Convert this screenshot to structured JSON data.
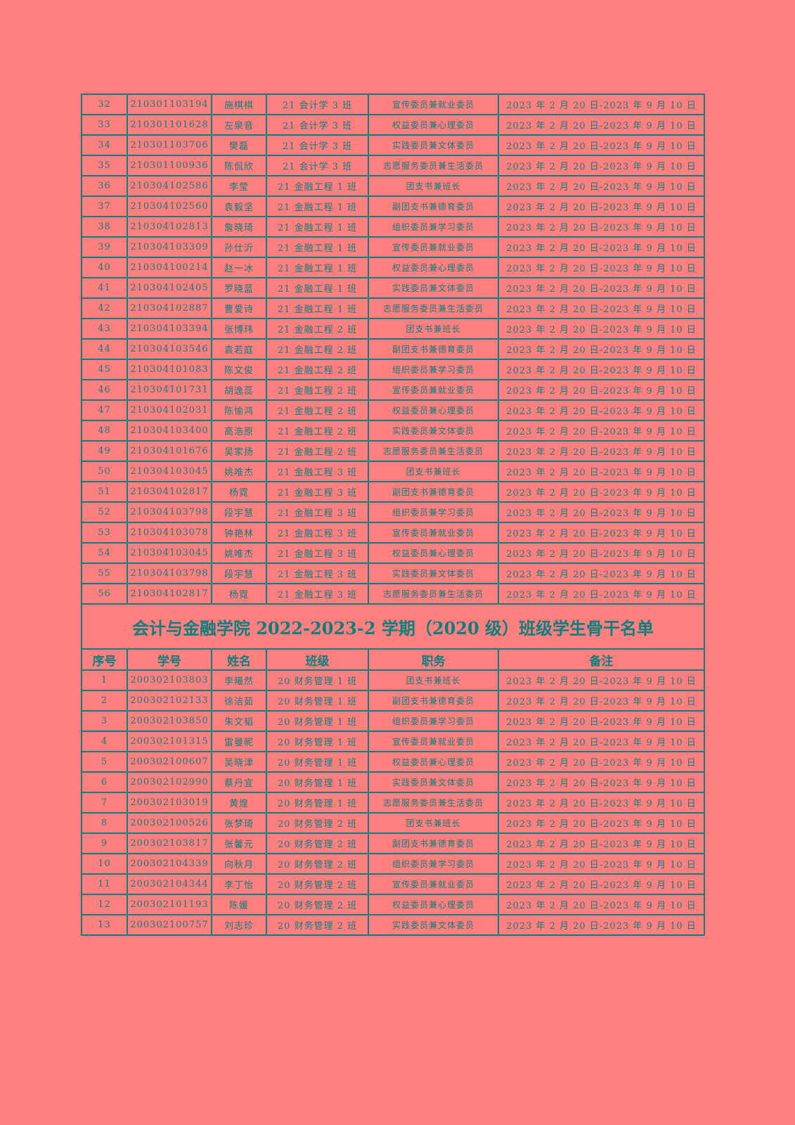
{
  "colors": {
    "background": "#ff7f7f",
    "text_and_border": "#0a7f7f"
  },
  "rows_2021": [
    [
      "32",
      "210301103194",
      "施棋棋",
      "21 会计学 3 班",
      "宣传委员兼就业委员",
      "2023 年 2 月 20 日-2023 年 9 月 10 日"
    ],
    [
      "33",
      "210301101628",
      "左泉音",
      "21 会计学 3 班",
      "权益委员兼心理委员",
      "2023 年 2 月 20 日-2023 年 9 月 10 日"
    ],
    [
      "34",
      "210301103706",
      "樊磊",
      "21 会计学 3 班",
      "实践委员兼文体委员",
      "2023 年 2 月 20 日-2023 年 9 月 10 日"
    ],
    [
      "35",
      "210301100936",
      "陈侃欣",
      "21 会计学 3 班",
      "志愿服务委员兼生活委员",
      "2023 年 2 月 20 日-2023 年 9 月 10 日"
    ],
    [
      "36",
      "210304102586",
      "李莹",
      "21 金融工程 1 班",
      "团支书兼班长",
      "2023 年 2 月 20 日-2023 年 9 月 10 日"
    ],
    [
      "37",
      "210304102560",
      "袁毅坚",
      "21 金融工程 1 班",
      "副团支书兼德育委员",
      "2023 年 2 月 20 日-2023 年 9 月 10 日"
    ],
    [
      "38",
      "210304102813",
      "詹晓琦",
      "21 金融工程 1 班",
      "组织委员兼学习委员",
      "2023 年 2 月 20 日-2023 年 9 月 10 日"
    ],
    [
      "39",
      "210304103309",
      "孙仕沂",
      "21 金融工程 1 班",
      "宣传委员兼就业委员",
      "2023 年 2 月 20 日-2023 年 9 月 10 日"
    ],
    [
      "40",
      "210304100214",
      "赵一冰",
      "21 金融工程 1 班",
      "权益委员兼心理委员",
      "2023 年 2 月 20 日-2023 年 9 月 10 日"
    ],
    [
      "41",
      "210304102405",
      "罗晓蓝",
      "21 金融工程 1 班",
      "实践委员兼文体委员",
      "2023 年 2 月 20 日-2023 年 9 月 10 日"
    ],
    [
      "42",
      "210304102887",
      "曹爱诗",
      "21 金融工程 1 班",
      "志愿服务委员兼生活委员",
      "2023 年 2 月 20 日-2023 年 9 月 10 日"
    ],
    [
      "43",
      "210304103394",
      "张博玮",
      "21 金融工程 2 班",
      "团支书兼班长",
      "2023 年 2 月 20 日-2023 年 9 月 10 日"
    ],
    [
      "44",
      "210304103546",
      "袁若庭",
      "21 金融工程 2 班",
      "副团支书兼德育委员",
      "2023 年 2 月 20 日-2023 年 9 月 10 日"
    ],
    [
      "45",
      "210304101083",
      "陈文俊",
      "21 金融工程 2 班",
      "组织委员兼学习委员",
      "2023 年 2 月 20 日-2023 年 9 月 10 日"
    ],
    [
      "46",
      "210304101731",
      "胡逸蕊",
      "21 金融工程 2 班",
      "宣传委员兼就业委员",
      "2023 年 2 月 20 日-2023 年 9 月 10 日"
    ],
    [
      "47",
      "210304102031",
      "陈愉鸿",
      "21 金融工程 2 班",
      "权益委员兼心理委员",
      "2023 年 2 月 20 日-2023 年 9 月 10 日"
    ],
    [
      "48",
      "210304103400",
      "高浩原",
      "21 金融工程 2 班",
      "实践委员兼文体委员",
      "2023 年 2 月 20 日-2023 年 9 月 10 日"
    ],
    [
      "49",
      "210304101676",
      "吴家扬",
      "21 金融工程 2 班",
      "志愿服务委员兼生活委员",
      "2023 年 2 月 20 日-2023 年 9 月 10 日"
    ],
    [
      "50",
      "210304103045",
      "姚唯杰",
      "21 金融工程 3 班",
      "团支书兼班长",
      "2023 年 2 月 20 日-2023 年 9 月 10 日"
    ],
    [
      "51",
      "210304102817",
      "杨霓",
      "21 金融工程 3 班",
      "副团支书兼德育委员",
      "2023 年 2 月 20 日-2023 年 9 月 10 日"
    ],
    [
      "52",
      "210304103798",
      "段宇慧",
      "21 金融工程 3 班",
      "组织委员兼学习委员",
      "2023 年 2 月 20 日-2023 年 9 月 10 日"
    ],
    [
      "53",
      "210304103078",
      "钟艳林",
      "21 金融工程 3 班",
      "宣传委员兼就业委员",
      "2023 年 2 月 20 日-2023 年 9 月 10 日"
    ],
    [
      "54",
      "210304103045",
      "姚唯杰",
      "21 金融工程 3 班",
      "权益委员兼心理委员",
      "2023 年 2 月 20 日-2023 年 9 月 10 日"
    ],
    [
      "55",
      "210304103798",
      "段宇慧",
      "21 金融工程 3 班",
      "实践委员兼文体委员",
      "2023 年 2 月 20 日-2023 年 9 月 10 日"
    ],
    [
      "56",
      "210304102817",
      "杨霓",
      "21 金融工程 3 班",
      "志愿服务委员兼生活委员",
      "2023 年 2 月 20 日-2023 年 9 月 10 日"
    ]
  ],
  "section_title": "会计与金融学院 2022-2023-2 学期（2020 级）班级学生骨干名单",
  "headers": [
    "序号",
    "学号",
    "姓名",
    "班级",
    "职务",
    "备注"
  ],
  "rows_2020": [
    [
      "1",
      "200302103803",
      "李曦然",
      "20 财务管理 1 班",
      "团支书兼班长",
      "2023 年 2 月 20 日-2023 年 9 月 10 日"
    ],
    [
      "2",
      "200302102133",
      "徐洁茹",
      "20 财务管理 1 班",
      "副团支书兼德育委员",
      "2023 年 2 月 20 日-2023 年 9 月 10 日"
    ],
    [
      "3",
      "200302103850",
      "朱文韬",
      "20 财务管理 1 班",
      "组织委员兼学习委员",
      "2023 年 2 月 20 日-2023 年 9 月 10 日"
    ],
    [
      "4",
      "200302101315",
      "雷曼昵",
      "20 财务管理 1 班",
      "宣传委员兼就业委员",
      "2023 年 2 月 20 日-2023 年 9 月 10 日"
    ],
    [
      "5",
      "200302100607",
      "吴晓津",
      "20 财务管理 1 班",
      "权益委员兼心理委员",
      "2023 年 2 月 20 日-2023 年 9 月 10 日"
    ],
    [
      "6",
      "200302102990",
      "蔡丹宜",
      "20 财务管理 1 班",
      "实践委员兼文体委员",
      "2023 年 2 月 20 日-2023 年 9 月 10 日"
    ],
    [
      "7",
      "200302103019",
      "黄煌",
      "20 财务管理 1 班",
      "志愿服务委员兼生活委员",
      "2023 年 2 月 20 日-2023 年 9 月 10 日"
    ],
    [
      "8",
      "200302100526",
      "张梦琦",
      "20 财务管理 2 班",
      "团支书兼班长",
      "2023 年 2 月 20 日-2023 年 9 月 10 日"
    ],
    [
      "9",
      "200302103817",
      "张馨元",
      "20 财务管理 2 班",
      "副团支书兼德育委员",
      "2023 年 2 月 20 日-2023 年 9 月 10 日"
    ],
    [
      "10",
      "200302104339",
      "向秋月",
      "20 财务管理 2 班",
      "组织委员兼学习委员",
      "2023 年 2 月 20 日-2023 年 9 月 10 日"
    ],
    [
      "11",
      "200302104344",
      "李丁怡",
      "20 财务管理 2 班",
      "宣传委员兼就业委员",
      "2023 年 2 月 20 日-2023 年 9 月 10 日"
    ],
    [
      "12",
      "200302101193",
      "陈媛",
      "20 财务管理 2 班",
      "权益委员兼心理委员",
      "2023 年 2 月 20 日-2023 年 9 月 10 日"
    ],
    [
      "13",
      "200302100757",
      "刘志珍",
      "20 财务管理 2 班",
      "实践委员兼文体委员",
      "2023 年 2 月 20 日-2023 年 9 月 10 日"
    ]
  ]
}
